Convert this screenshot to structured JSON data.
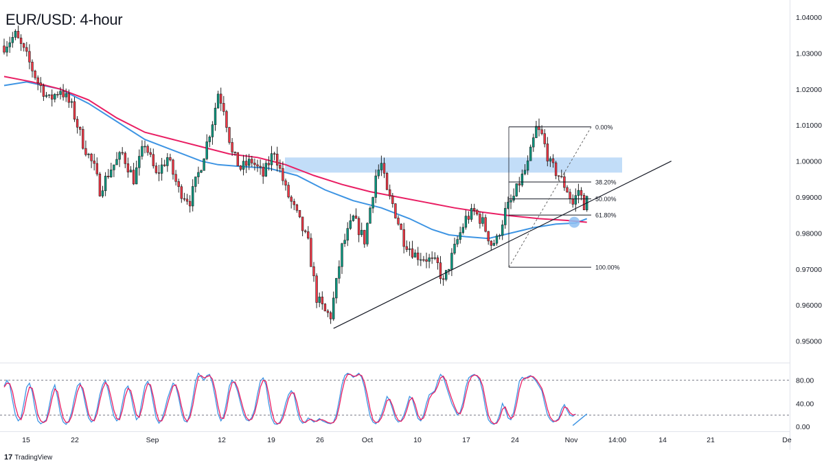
{
  "title": "EUR/USD: 4-hour",
  "brand": {
    "logo": "17",
    "name": "TradingView"
  },
  "colors": {
    "bull": "#089981",
    "bear": "#f23645",
    "ma_fast": "#3d94e3",
    "ma_slow": "#e91e63",
    "zone": "#bbd9f7",
    "stoch_k": "#3d94e3",
    "stoch_d": "#e91e63",
    "axis_text": "#131722",
    "grid": "#e0e3eb"
  },
  "chart_data": [
    {
      "type": "candlestick",
      "title": "EUR/USD: 4-hour",
      "ylim": [
        0.944,
        1.044
      ],
      "y_ticks": [
        "1.04000",
        "1.03000",
        "1.02000",
        "1.01000",
        "1.00000",
        "0.99000",
        "0.98000",
        "0.97000",
        "0.96000",
        "0.95000"
      ],
      "x_ticks": [
        "15",
        "22",
        "Sep",
        "12",
        "19",
        "26",
        "Oct",
        "10",
        "17",
        "24",
        "Nov",
        "14:00",
        "14",
        "21",
        "De"
      ],
      "price_path": [
        [
          0,
          1.032
        ],
        [
          4,
          1.035
        ],
        [
          8,
          1.029
        ],
        [
          12,
          1.022
        ],
        [
          16,
          1.017
        ],
        [
          20,
          1.02
        ],
        [
          24,
          1.015
        ],
        [
          28,
          1.005
        ],
        [
          32,
          0.998
        ],
        [
          34,
          0.992
        ],
        [
          38,
          0.998
        ],
        [
          42,
          1.002
        ],
        [
          46,
          0.995
        ],
        [
          50,
          1.005
        ],
        [
          54,
          0.996
        ],
        [
          58,
          1.001
        ],
        [
          62,
          0.992
        ],
        [
          66,
          0.989
        ],
        [
          70,
          0.999
        ],
        [
          74,
          1.011
        ],
        [
          76,
          1.019
        ],
        [
          78,
          1.015
        ],
        [
          81,
          1.002
        ],
        [
          84,
          0.998
        ],
        [
          88,
          1.0
        ],
        [
          92,
          0.996
        ],
        [
          96,
          1.003
        ],
        [
          100,
          0.992
        ],
        [
          104,
          0.985
        ],
        [
          108,
          0.977
        ],
        [
          111,
          0.962
        ],
        [
          114,
          0.958
        ],
        [
          116,
          0.957
        ],
        [
          118,
          0.966
        ],
        [
          120,
          0.976
        ],
        [
          124,
          0.984
        ],
        [
          128,
          0.978
        ],
        [
          132,
          0.996
        ],
        [
          134,
          0.999
        ],
        [
          136,
          0.991
        ],
        [
          138,
          0.988
        ],
        [
          142,
          0.978
        ],
        [
          146,
          0.974
        ],
        [
          150,
          0.973
        ],
        [
          154,
          0.971
        ],
        [
          156,
          0.966
        ],
        [
          158,
          0.971
        ],
        [
          161,
          0.978
        ],
        [
          164,
          0.984
        ],
        [
          167,
          0.986
        ],
        [
          170,
          0.983
        ],
        [
          173,
          0.977
        ],
        [
          175,
          0.978
        ],
        [
          178,
          0.986
        ],
        [
          181,
          0.99
        ],
        [
          183,
          0.994
        ],
        [
          186,
          0.999
        ],
        [
          189,
          1.009
        ],
        [
          191,
          1.007
        ],
        [
          194,
          0.999
        ],
        [
          197,
          0.996
        ],
        [
          200,
          0.992
        ],
        [
          202,
          0.988
        ],
        [
          204,
          0.992
        ],
        [
          206,
          0.988
        ],
        [
          207,
          0.989
        ]
      ],
      "series": [
        {
          "name": "",
          "style": "ma_fast",
          "points": [
            [
              0,
              1.021
            ],
            [
              8,
              1.022
            ],
            [
              20,
              1.02
            ],
            [
              30,
              1.016
            ],
            [
              40,
              1.011
            ],
            [
              50,
              1.006
            ],
            [
              60,
              1.003
            ],
            [
              70,
              1.0
            ],
            [
              76,
              0.999
            ],
            [
              84,
              0.9985
            ],
            [
              94,
              0.998
            ],
            [
              104,
              0.996
            ],
            [
              114,
              0.992
            ],
            [
              124,
              0.989
            ],
            [
              134,
              0.987
            ],
            [
              144,
              0.984
            ],
            [
              152,
              0.981
            ],
            [
              158,
              0.9795
            ],
            [
              164,
              0.979
            ],
            [
              172,
              0.9785
            ],
            [
              180,
              0.98
            ],
            [
              188,
              0.9815
            ],
            [
              196,
              0.9825
            ],
            [
              203,
              0.9828
            ],
            [
              207,
              0.984
            ]
          ]
        },
        {
          "name": "",
          "style": "ma_slow",
          "points": [
            [
              0,
              1.0235
            ],
            [
              10,
              1.022
            ],
            [
              20,
              1.02
            ],
            [
              30,
              1.017
            ],
            [
              40,
              1.012
            ],
            [
              50,
              1.008
            ],
            [
              60,
              1.006
            ],
            [
              70,
              1.004
            ],
            [
              80,
              1.002
            ],
            [
              90,
              1.001
            ],
            [
              100,
              0.999
            ],
            [
              110,
              0.996
            ],
            [
              120,
              0.9935
            ],
            [
              130,
              0.9915
            ],
            [
              140,
              0.99
            ],
            [
              150,
              0.9885
            ],
            [
              160,
              0.987
            ],
            [
              170,
              0.9858
            ],
            [
              180,
              0.9848
            ],
            [
              190,
              0.984
            ],
            [
              200,
              0.9835
            ],
            [
              207,
              0.983
            ]
          ]
        }
      ],
      "resistance_zone": {
        "ymin": 0.9968,
        "ymax": 1.001
      },
      "trendline": [
        [
          117,
          0.9535
        ],
        [
          237,
          1.0
        ]
      ],
      "fibonacci": {
        "levels": [
          {
            "label": "0.00%",
            "value": 1.0095
          },
          {
            "label": "38.20%",
            "value": 0.9942
          },
          {
            "label": "50.00%",
            "value": 0.9895
          },
          {
            "label": "61.80%",
            "value": 0.985
          },
          {
            "label": "100.00%",
            "value": 0.9705
          }
        ]
      },
      "highlight_point": [
        203,
        0.983
      ]
    },
    {
      "type": "line",
      "ylim": [
        -8,
        108
      ],
      "y_ticks": [
        "80.00",
        "40.00",
        "0.00"
      ],
      "reference_lines": [
        80,
        20
      ],
      "series": [
        {
          "name": "",
          "style": "stoch_k",
          "values": [
            70,
            80,
            72,
            45,
            20,
            10,
            15,
            40,
            68,
            75,
            60,
            30,
            10,
            5,
            8,
            12,
            35,
            60,
            72,
            50,
            22,
            8,
            4,
            10,
            25,
            50,
            70,
            75,
            60,
            35,
            15,
            8,
            12,
            30,
            55,
            72,
            80,
            62,
            38,
            18,
            10,
            15,
            40,
            64,
            70,
            55,
            30,
            12,
            18,
            45,
            70,
            78,
            68,
            40,
            15,
            6,
            12,
            28,
            48,
            62,
            75,
            70,
            50,
            25,
            10,
            8,
            22,
            48,
            78,
            92,
            86,
            80,
            88,
            90,
            75,
            50,
            22,
            10,
            18,
            42,
            70,
            80,
            74,
            60,
            40,
            22,
            12,
            10,
            16,
            30,
            56,
            78,
            84,
            72,
            40,
            15,
            5,
            4,
            8,
            20,
            40,
            55,
            62,
            55,
            30,
            12,
            6,
            8,
            15,
            12,
            8,
            10,
            14,
            10,
            8,
            6,
            5,
            8,
            20,
            45,
            72,
            88,
            92,
            90,
            85,
            88,
            92,
            85,
            68,
            42,
            18,
            8,
            5,
            10,
            20,
            36,
            52,
            45,
            30,
            14,
            8,
            10,
            20,
            35,
            52,
            48,
            30,
            14,
            10,
            20,
            40,
            55,
            58,
            62,
            78,
            90,
            85,
            70,
            55,
            40,
            30,
            20,
            25,
            42,
            68,
            84,
            88,
            90,
            87,
            80,
            60,
            32,
            12,
            6,
            4,
            8,
            20,
            40,
            30,
            15,
            12,
            25,
            50,
            78,
            85,
            82,
            86,
            88,
            84,
            78,
            70,
            62,
            40,
            20,
            12,
            8,
            10,
            14,
            30,
            38,
            28,
            20,
            18,
            22
          ]
        },
        {
          "name": "",
          "style": "stoch_d",
          "values": [
            68,
            75,
            74,
            60,
            35,
            18,
            12,
            25,
            50,
            68,
            66,
            45,
            20,
            10,
            7,
            10,
            25,
            48,
            65,
            60,
            35,
            15,
            7,
            8,
            18,
            38,
            60,
            72,
            66,
            45,
            22,
            12,
            10,
            22,
            45,
            65,
            76,
            70,
            50,
            28,
            14,
            12,
            28,
            52,
            66,
            62,
            42,
            20,
            16,
            32,
            58,
            74,
            72,
            52,
            26,
            10,
            10,
            20,
            38,
            55,
            70,
            72,
            58,
            35,
            16,
            9,
            16,
            36,
            64,
            86,
            88,
            84,
            86,
            88,
            82,
            62,
            35,
            15,
            14,
            30,
            58,
            76,
            77,
            66,
            48,
            30,
            16,
            11,
            13,
            24,
            44,
            68,
            80,
            78,
            56,
            28,
            10,
            5,
            6,
            14,
            30,
            48,
            58,
            58,
            42,
            20,
            9,
            7,
            11,
            13,
            10,
            9,
            12,
            12,
            10,
            7,
            6,
            7,
            14,
            34,
            60,
            80,
            90,
            90,
            87,
            87,
            90,
            88,
            76,
            55,
            30,
            12,
            7,
            8,
            15,
            28,
            45,
            47,
            36,
            20,
            11,
            9,
            15,
            28,
            45,
            50,
            38,
            20,
            12,
            15,
            30,
            48,
            56,
            60,
            70,
            84,
            87,
            78,
            62,
            48,
            35,
            24,
            22,
            34,
            56,
            76,
            86,
            89,
            88,
            83,
            70,
            45,
            20,
            9,
            5,
            6,
            14,
            30,
            34,
            22,
            14,
            18,
            38,
            64,
            80,
            84,
            84,
            87,
            86,
            81,
            74,
            66,
            50,
            30,
            16,
            10,
            9,
            12,
            22,
            34,
            32,
            24,
            20,
            21
          ]
        }
      ],
      "trendline": [
        [
          202,
          2
        ],
        [
          207,
          22
        ]
      ]
    }
  ]
}
